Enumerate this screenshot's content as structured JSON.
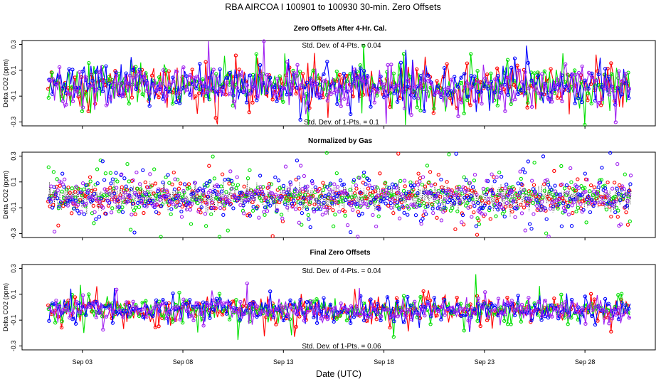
{
  "title": "RBA   AIRCOA I   100901 to 100930   30-min. Zero Offsets",
  "xlabel": "Date (UTC)",
  "colors": {
    "red": "#ff0000",
    "green": "#00e000",
    "blue": "#0000ff",
    "purple": "#a020f0",
    "black": "#000000"
  },
  "chart_data": [
    {
      "type": "scatter",
      "title": "Zero Offsets After 4-Hr. Cal.",
      "ylabel": "Delta CO2 (ppm)",
      "ylim": [
        -0.33,
        0.33
      ],
      "yticks": [
        "-0.3",
        "-0.1",
        "0.1",
        "0.3"
      ],
      "ytick_values": [
        -0.3,
        -0.1,
        0.1,
        0.3
      ],
      "annotation_top": "Std. Dev. of 4-Pts. =  0.04",
      "annotation_bottom": "Std. Dev. of 1-Pts. =  0.1",
      "series_spread": 0.1
    },
    {
      "type": "scatter",
      "title": "Normalized by Gas",
      "ylabel": "Delta CO2 (ppm)",
      "ylim": [
        -0.33,
        0.33
      ],
      "yticks": [
        "-0.3",
        "-0.1",
        "0.1",
        "0.3"
      ],
      "ytick_values": [
        -0.3,
        -0.1,
        0.1,
        0.3
      ],
      "series_spread": 0.1
    },
    {
      "type": "scatter",
      "title": "Final Zero Offsets",
      "ylabel": "Delta CO2 (ppm)",
      "ylim": [
        -0.33,
        0.33
      ],
      "yticks": [
        "-0.3",
        "-0.1",
        "0.1",
        "0.3"
      ],
      "ytick_values": [
        -0.3,
        -0.1,
        0.1,
        0.3
      ],
      "annotation_top": "Std. Dev. of 4-Pts. =  0.04",
      "annotation_bottom": "Std. Dev. of 1-Pts. =  0.06",
      "series_spread": 0.06
    }
  ],
  "x_axis": {
    "xlim": [
      0.0,
      31.5
    ],
    "ticks": [
      "Sep 03",
      "Sep 08",
      "Sep 13",
      "Sep 18",
      "Sep 23",
      "Sep 28"
    ],
    "tick_values": [
      3,
      8,
      13,
      18,
      23,
      28
    ],
    "data_start": 1.3,
    "data_end": 30.3
  },
  "series": [
    "red",
    "green",
    "blue",
    "purple"
  ]
}
